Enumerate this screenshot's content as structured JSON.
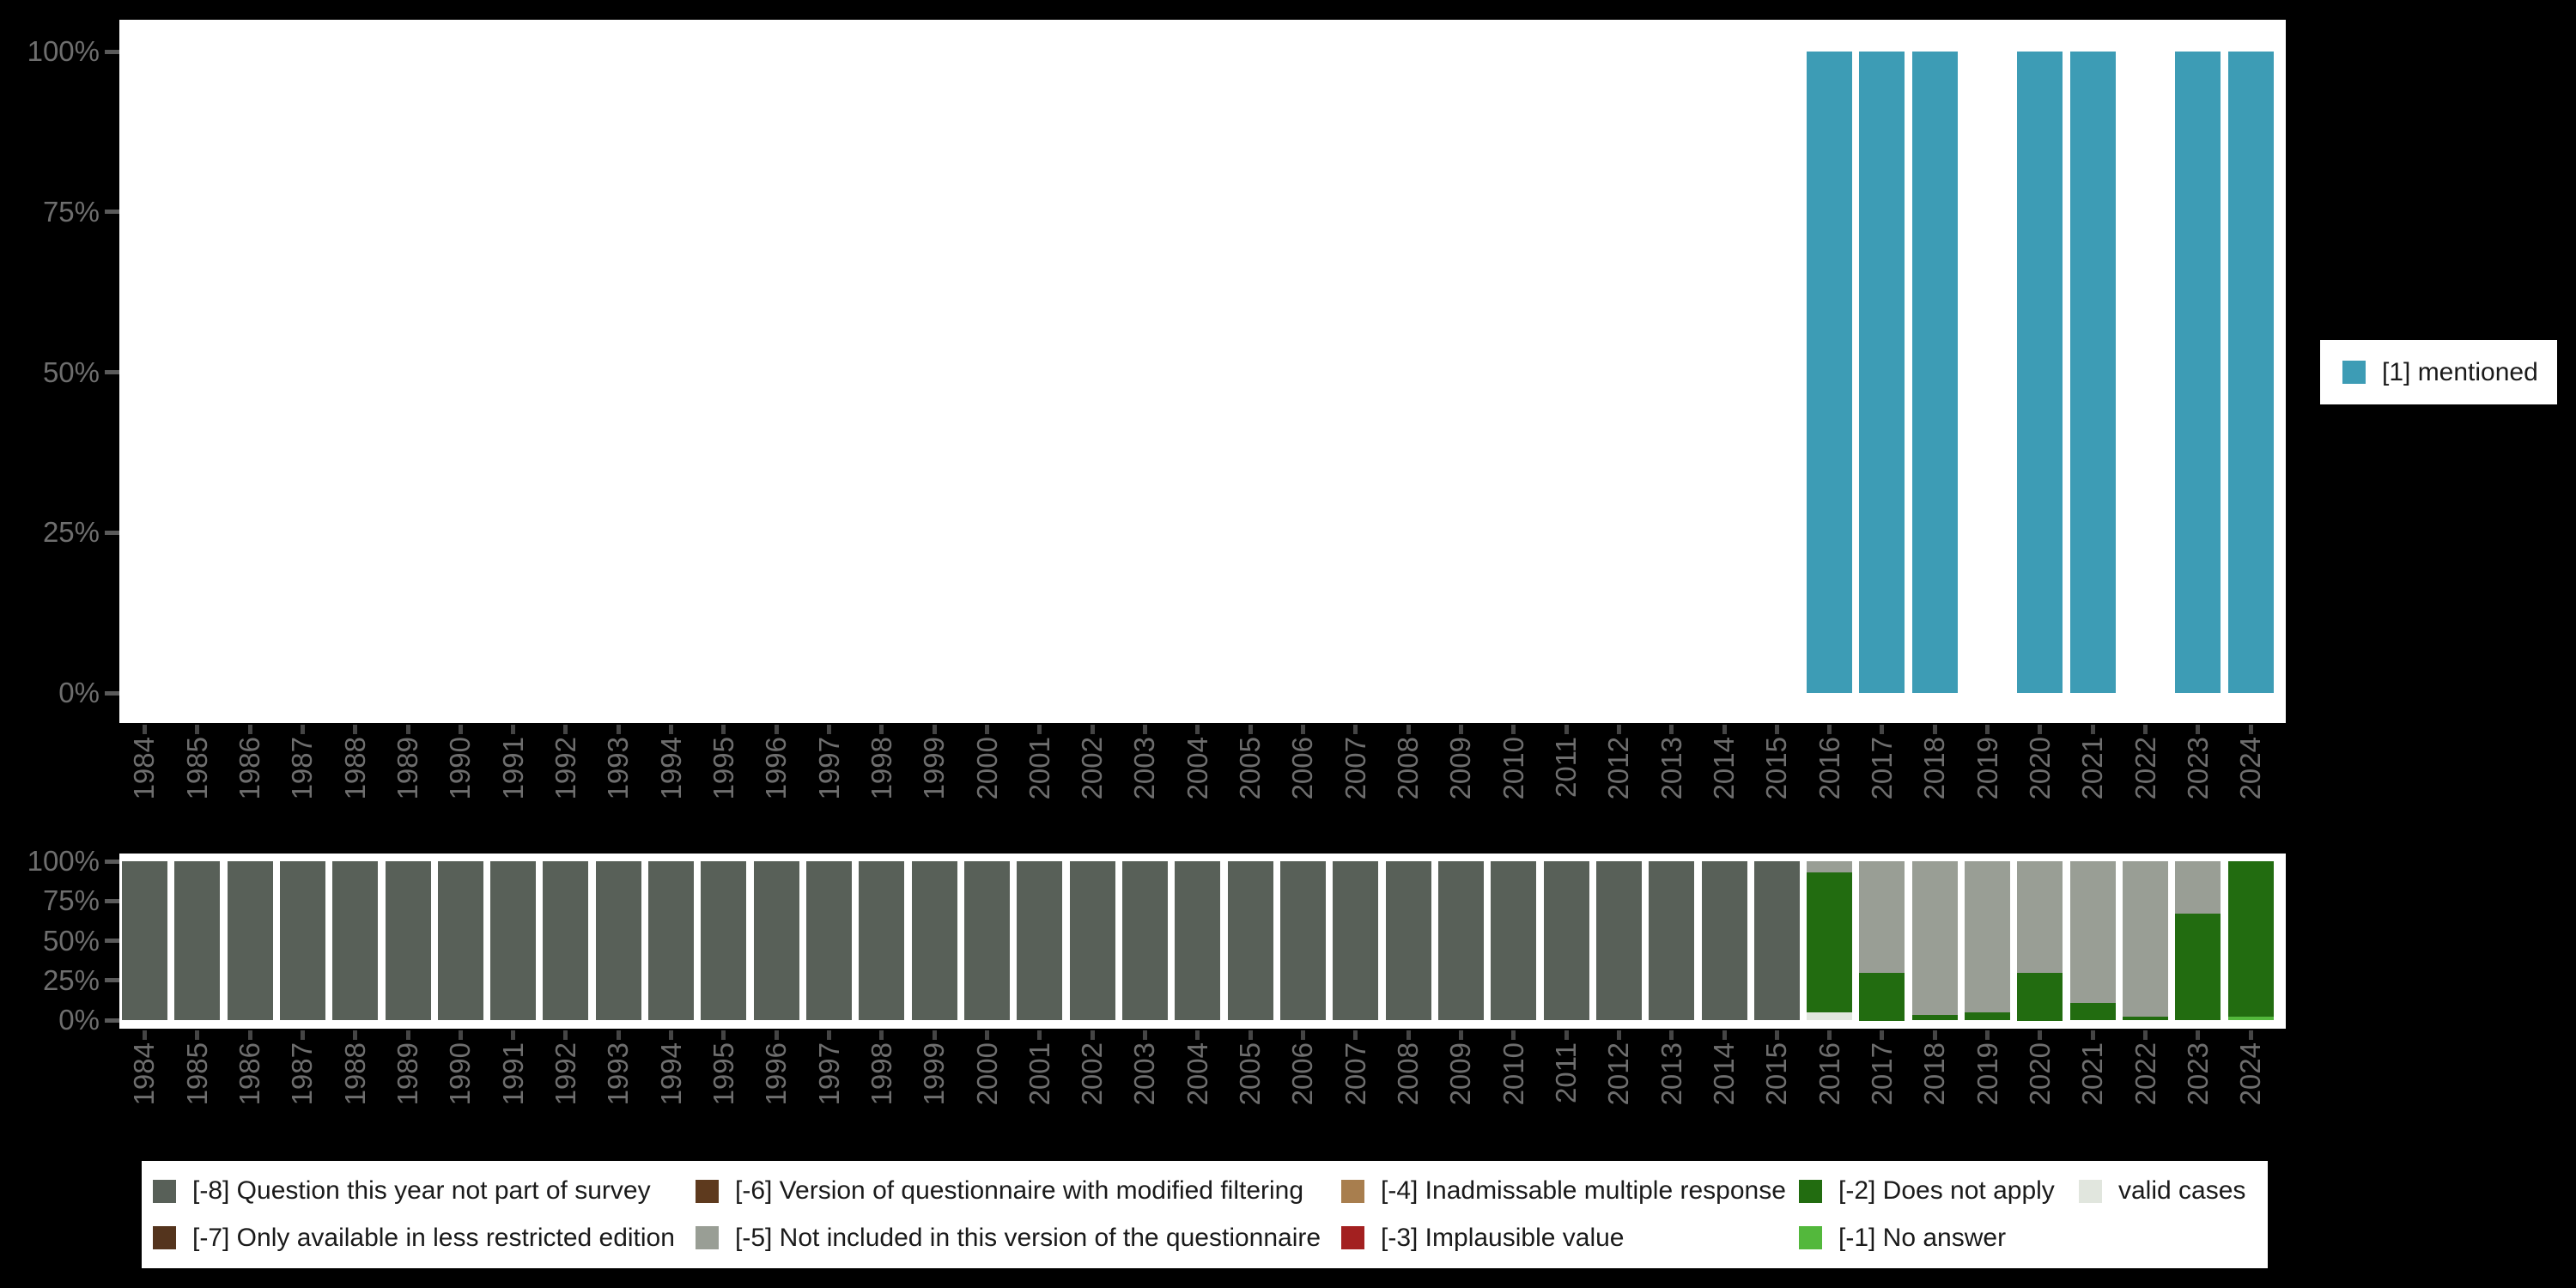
{
  "colors": {
    "mentioned": "#3d9cb5",
    "-8": "#586058",
    "-7": "#54341d",
    "-6": "#5e3a1e",
    "-5": "#999e95",
    "-4": "#a87e4e",
    "-3": "#a32020",
    "-2": "#226c10",
    "-1": "#53b83c",
    "valid": "#e1e6de"
  },
  "legend_top": {
    "items": [
      {
        "code": "mentioned",
        "label": "[1] mentioned"
      }
    ]
  },
  "legend_bottom": {
    "items": [
      {
        "code": "-8",
        "label": "[-8] Question this year not part of survey"
      },
      {
        "code": "-7",
        "label": "[-7] Only available in less restricted edition"
      },
      {
        "code": "-6",
        "label": "[-6] Version of questionnaire with modified filtering"
      },
      {
        "code": "-5",
        "label": "[-5] Not included in this version of the questionnaire"
      },
      {
        "code": "-4",
        "label": "[-4] Inadmissable multiple response"
      },
      {
        "code": "-3",
        "label": "[-3] Implausible value"
      },
      {
        "code": "-2",
        "label": "[-2] Does not apply"
      },
      {
        "code": "-1",
        "label": "[-1] No answer"
      },
      {
        "code": "valid",
        "label": "valid cases"
      }
    ]
  },
  "chart_data": [
    {
      "type": "bar",
      "title": "",
      "xlabel": "",
      "ylabel": "",
      "ylim": [
        0,
        100
      ],
      "grid": false,
      "legend_position": "right",
      "categories": [
        "1984",
        "1985",
        "1986",
        "1987",
        "1988",
        "1989",
        "1990",
        "1991",
        "1992",
        "1993",
        "1994",
        "1995",
        "1996",
        "1997",
        "1998",
        "1999",
        "2000",
        "2001",
        "2002",
        "2003",
        "2004",
        "2005",
        "2006",
        "2007",
        "2008",
        "2009",
        "2010",
        "2011",
        "2012",
        "2013",
        "2014",
        "2015",
        "2016",
        "2017",
        "2018",
        "2019",
        "2020",
        "2021",
        "2022",
        "2023",
        "2024"
      ],
      "yticks": [
        {
          "v": 100,
          "label": "100%"
        },
        {
          "v": 75,
          "label": "75%"
        },
        {
          "v": 50,
          "label": "50%"
        },
        {
          "v": 25,
          "label": "25%"
        },
        {
          "v": 0,
          "label": "0%"
        }
      ],
      "series": [
        {
          "name": "[1] mentioned",
          "color_key": "mentioned",
          "values": {
            "2016": 100,
            "2017": 100,
            "2018": 100,
            "2020": 100,
            "2021": 100,
            "2023": 100,
            "2024": 100
          }
        }
      ]
    },
    {
      "type": "stacked-bar",
      "title": "",
      "xlabel": "",
      "ylabel": "",
      "ylim": [
        0,
        100
      ],
      "grid": false,
      "legend_position": "bottom",
      "categories": [
        "1984",
        "1985",
        "1986",
        "1987",
        "1988",
        "1989",
        "1990",
        "1991",
        "1992",
        "1993",
        "1994",
        "1995",
        "1996",
        "1997",
        "1998",
        "1999",
        "2000",
        "2001",
        "2002",
        "2003",
        "2004",
        "2005",
        "2006",
        "2007",
        "2008",
        "2009",
        "2010",
        "2011",
        "2012",
        "2013",
        "2014",
        "2015",
        "2016",
        "2017",
        "2018",
        "2019",
        "2020",
        "2021",
        "2022",
        "2023",
        "2024"
      ],
      "yticks": [
        {
          "v": 100,
          "label": "100%"
        },
        {
          "v": 75,
          "label": "75%"
        },
        {
          "v": 50,
          "label": "50%"
        },
        {
          "v": 25,
          "label": "25%"
        },
        {
          "v": 0,
          "label": "0%"
        }
      ],
      "stacks": {
        "1984": [
          [
            "-8",
            100
          ]
        ],
        "1985": [
          [
            "-8",
            100
          ]
        ],
        "1986": [
          [
            "-8",
            100
          ]
        ],
        "1987": [
          [
            "-8",
            100
          ]
        ],
        "1988": [
          [
            "-8",
            100
          ]
        ],
        "1989": [
          [
            "-8",
            100
          ]
        ],
        "1990": [
          [
            "-8",
            100
          ]
        ],
        "1991": [
          [
            "-8",
            100
          ]
        ],
        "1992": [
          [
            "-8",
            100
          ]
        ],
        "1993": [
          [
            "-8",
            100
          ]
        ],
        "1994": [
          [
            "-8",
            100
          ]
        ],
        "1995": [
          [
            "-8",
            100
          ]
        ],
        "1996": [
          [
            "-8",
            100
          ]
        ],
        "1997": [
          [
            "-8",
            100
          ]
        ],
        "1998": [
          [
            "-8",
            100
          ]
        ],
        "1999": [
          [
            "-8",
            100
          ]
        ],
        "2000": [
          [
            "-8",
            100
          ]
        ],
        "2001": [
          [
            "-8",
            100
          ]
        ],
        "2002": [
          [
            "-8",
            100
          ]
        ],
        "2003": [
          [
            "-8",
            100
          ]
        ],
        "2004": [
          [
            "-8",
            100
          ]
        ],
        "2005": [
          [
            "-8",
            100
          ]
        ],
        "2006": [
          [
            "-8",
            100
          ]
        ],
        "2007": [
          [
            "-8",
            100
          ]
        ],
        "2008": [
          [
            "-8",
            100
          ]
        ],
        "2009": [
          [
            "-8",
            100
          ]
        ],
        "2010": [
          [
            "-8",
            100
          ]
        ],
        "2011": [
          [
            "-8",
            100
          ]
        ],
        "2012": [
          [
            "-8",
            100
          ]
        ],
        "2013": [
          [
            "-8",
            100
          ]
        ],
        "2014": [
          [
            "-8",
            100
          ]
        ],
        "2015": [
          [
            "-8",
            100
          ]
        ],
        "2016": [
          [
            "valid",
            5
          ],
          [
            "-2",
            88
          ],
          [
            "-5",
            7
          ]
        ],
        "2017": [
          [
            "-2",
            30
          ],
          [
            "-5",
            70
          ]
        ],
        "2018": [
          [
            "-2",
            3
          ],
          [
            "-5",
            97
          ]
        ],
        "2019": [
          [
            "-2",
            5
          ],
          [
            "-5",
            95
          ]
        ],
        "2020": [
          [
            "-2",
            30
          ],
          [
            "-5",
            70
          ]
        ],
        "2021": [
          [
            "-2",
            11
          ],
          [
            "-5",
            89
          ]
        ],
        "2022": [
          [
            "-2",
            2
          ],
          [
            "-5",
            98
          ]
        ],
        "2023": [
          [
            "-2",
            67
          ],
          [
            "-5",
            33
          ]
        ],
        "2024": [
          [
            "-1",
            2
          ],
          [
            "-2",
            98
          ]
        ]
      }
    }
  ]
}
